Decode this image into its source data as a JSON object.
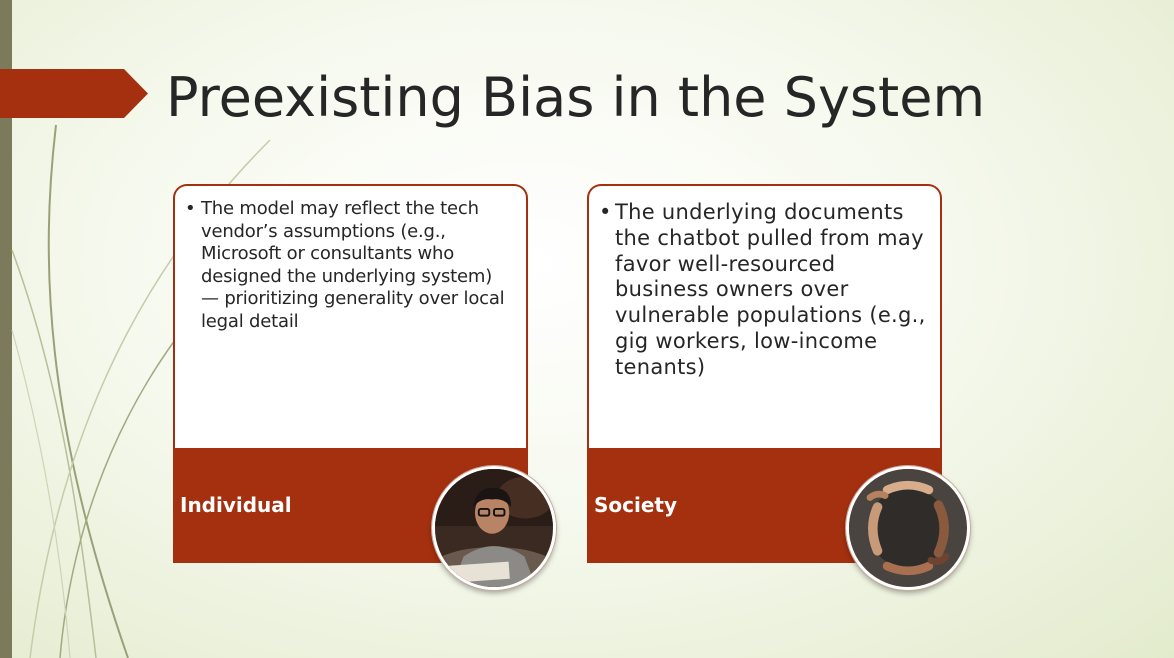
{
  "slide": {
    "title": "Preexisting Bias in the System",
    "colors": {
      "accent": "#a5300f",
      "background": "#eef3dc",
      "left_bar": "#7d7a5c"
    }
  },
  "cards": [
    {
      "label": "Individual",
      "bullet": "The model may reflect the tech vendor’s assumptions (e.g., Microsoft or consultants who designed the underlying system) — prioritizing generality over local legal detail",
      "image": "person-studying-photo"
    },
    {
      "label": "Society",
      "bullet": "The underlying documents the chatbot pulled from may favor well-resourced business owners over vulnerable populations (e.g., gig workers, low-income tenants)",
      "image": "hands-circle-photo"
    }
  ]
}
